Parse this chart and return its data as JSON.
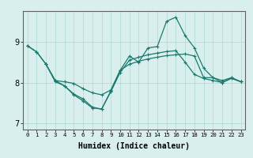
{
  "xlabel": "Humidex (Indice chaleur)",
  "bg_color": "#d9efed",
  "grid_color": "#b0d8d4",
  "line_color": "#1a7a6e",
  "xlim": [
    -0.5,
    23.5
  ],
  "ylim": [
    6.85,
    9.75
  ],
  "yticks": [
    7,
    8,
    9
  ],
  "xticks": [
    0,
    1,
    2,
    3,
    4,
    5,
    6,
    7,
    8,
    9,
    10,
    11,
    12,
    13,
    14,
    15,
    16,
    17,
    18,
    19,
    20,
    21,
    22,
    23
  ],
  "series_peak_x": [
    0,
    1,
    2,
    3,
    4,
    5,
    6,
    7,
    8,
    9,
    10,
    11,
    12,
    13,
    14,
    15,
    16,
    17,
    18,
    19,
    20,
    21,
    22,
    23
  ],
  "series_peak_y": [
    8.9,
    8.75,
    8.45,
    8.05,
    7.92,
    7.72,
    7.6,
    7.4,
    7.35,
    7.8,
    8.3,
    8.65,
    8.5,
    8.85,
    8.88,
    9.5,
    9.6,
    9.15,
    8.85,
    8.35,
    8.12,
    8.0,
    8.12,
    8.02
  ],
  "series_flat_x": [
    0,
    1,
    2,
    3,
    4,
    5,
    6,
    7,
    8,
    9,
    10,
    11,
    12,
    13,
    14,
    15,
    16,
    17,
    18,
    19,
    20,
    21,
    22,
    23
  ],
  "series_flat_y": [
    8.9,
    8.75,
    8.45,
    8.02,
    7.92,
    7.7,
    7.55,
    7.38,
    7.35,
    7.78,
    8.25,
    8.55,
    8.62,
    8.68,
    8.72,
    8.76,
    8.78,
    8.5,
    8.2,
    8.1,
    8.05,
    8.0,
    8.1,
    8.02
  ],
  "series_low_x": [
    2,
    3,
    4,
    5,
    6,
    7,
    8,
    9,
    10,
    11,
    12,
    13,
    14,
    15,
    16,
    17,
    18,
    19,
    20,
    21,
    22,
    23
  ],
  "series_low_y": [
    8.45,
    8.05,
    8.02,
    7.98,
    7.85,
    7.75,
    7.7,
    7.82,
    8.3,
    8.45,
    8.52,
    8.58,
    8.62,
    8.66,
    8.68,
    8.7,
    8.65,
    8.12,
    8.12,
    8.05,
    8.12,
    8.02
  ]
}
